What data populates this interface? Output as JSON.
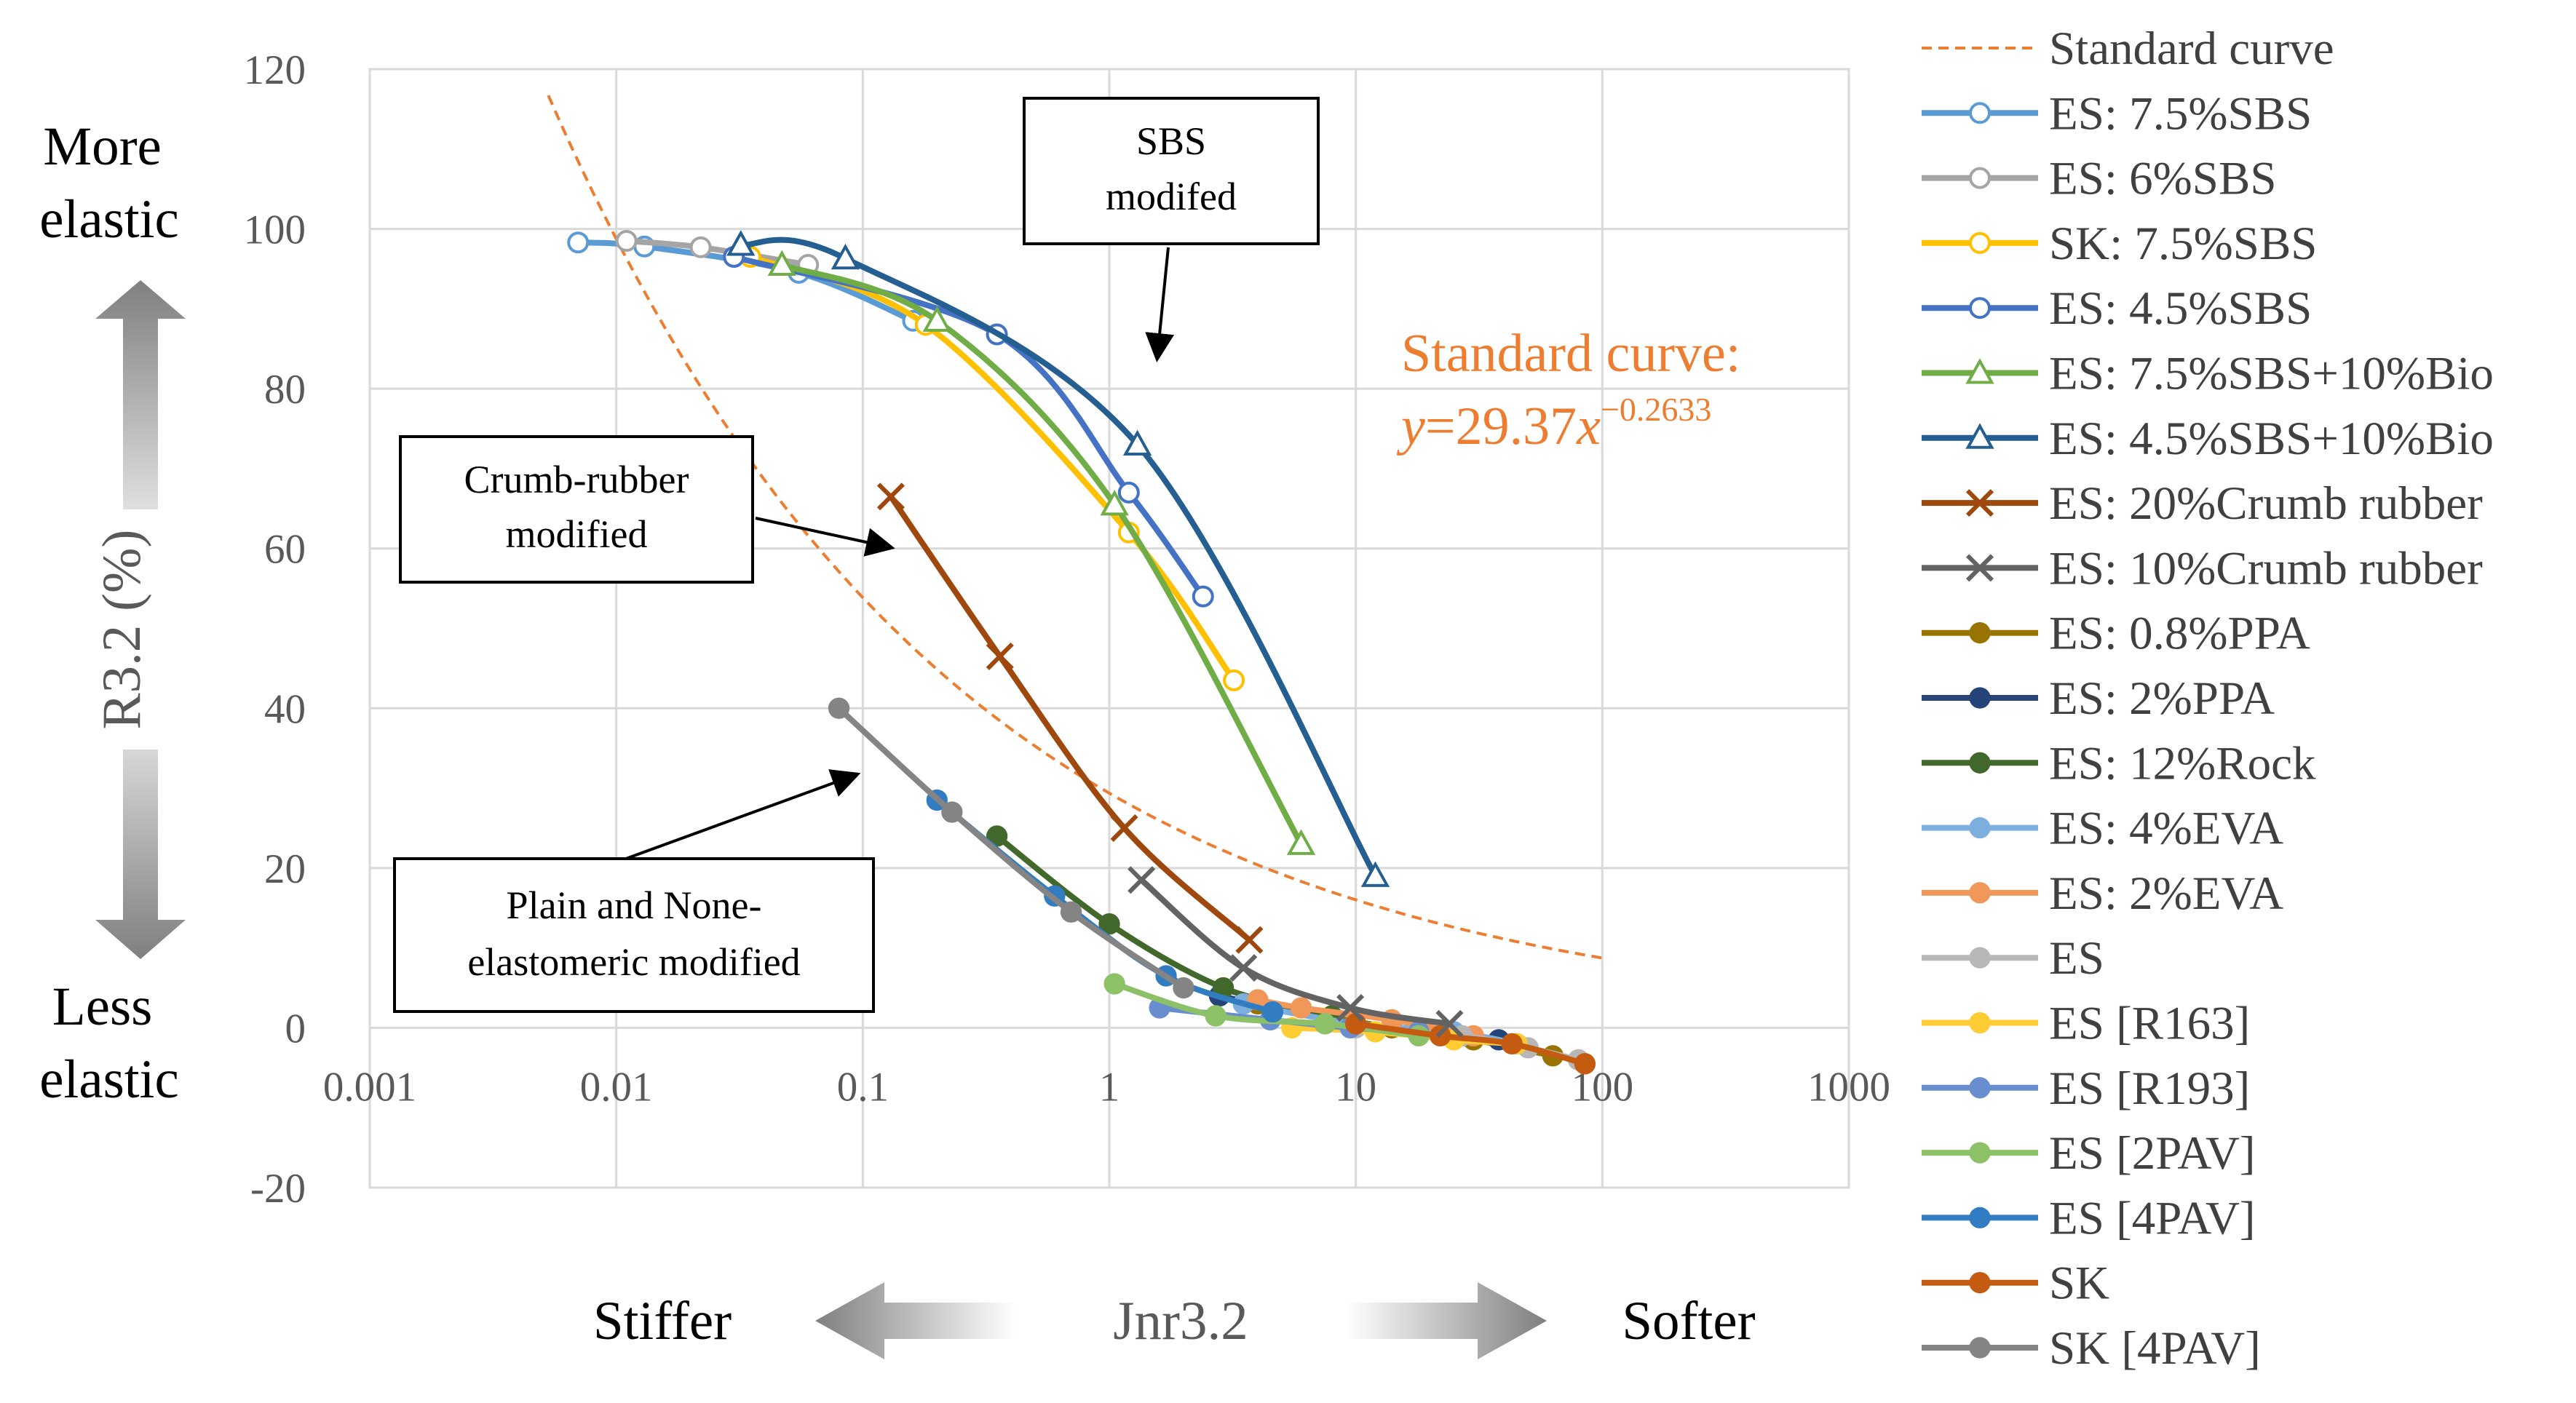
{
  "chart_data": {
    "type": "line",
    "xscale": "log",
    "xlim": [
      0.001,
      1000
    ],
    "ylim": [
      -20,
      120
    ],
    "xticks": [
      "0.001",
      "0.01",
      "0.1",
      "1",
      "10",
      "100",
      "1000"
    ],
    "yticks": [
      "-20",
      "0",
      "20",
      "40",
      "60",
      "80",
      "100",
      "120"
    ],
    "ylabel": "R3.2 (%)",
    "xlabel": "Jnr3.2",
    "x_left_label": "Stiffer",
    "x_right_label": "Softer",
    "y_top_label": [
      "More",
      "elastic"
    ],
    "y_bottom_label": [
      "Less",
      "elastic"
    ],
    "standard_curve": {
      "name": "Standard curve",
      "equation_title": "Standard curve:",
      "equation_y": "y",
      "equation_rhs": "=29.37",
      "equation_x": "x",
      "equation_exp": "−0.2633",
      "coefficient": 29.37,
      "exponent": -0.2633,
      "x_range": [
        0.0053,
        100
      ],
      "color": "#ed7d31"
    },
    "annotations": [
      {
        "lines": [
          "SBS",
          "modifed"
        ]
      },
      {
        "lines": [
          "Crumb-rubber",
          "modified"
        ]
      },
      {
        "lines": [
          "Plain and None-",
          "elastomeric modified"
        ]
      }
    ],
    "series": [
      {
        "name": "ES: 7.5%SBS",
        "color": "#5b9bd5",
        "marker": "o-open",
        "x": [
          0.007,
          0.013,
          0.055,
          0.16
        ],
        "y": [
          98.3,
          97.8,
          94.5,
          88.5
        ]
      },
      {
        "name": "ES: 6%SBS",
        "color": "#a5a5a5",
        "marker": "o-open",
        "x": [
          0.011,
          0.022,
          0.06
        ],
        "y": [
          98.5,
          97.7,
          95.5
        ]
      },
      {
        "name": "SK: 7.5%SBS",
        "color": "#ffc000",
        "marker": "o-open",
        "x": [
          0.035,
          0.18,
          1.2,
          3.2
        ],
        "y": [
          96.5,
          88.0,
          62.0,
          43.5
        ]
      },
      {
        "name": "ES: 4.5%SBS",
        "color": "#4472c4",
        "marker": "o-open",
        "x": [
          0.03,
          0.35,
          1.2,
          2.4
        ],
        "y": [
          96.5,
          86.8,
          67.0,
          54.0
        ]
      },
      {
        "name": "ES: 7.5%SBS+10%Bio",
        "color": "#70ad47",
        "marker": "tri-open",
        "x": [
          0.047,
          0.2,
          1.05,
          6.0
        ],
        "y": [
          95.5,
          88.5,
          65.5,
          23.0
        ]
      },
      {
        "name": "ES: 4.5%SBS+10%Bio",
        "color": "#255e91",
        "marker": "tri-open",
        "x": [
          0.032,
          0.085,
          1.3,
          12.0
        ],
        "y": [
          98.0,
          96.3,
          73.0,
          19.0
        ]
      },
      {
        "name": "ES: 20%Crumb rubber",
        "color": "#9e480e",
        "marker": "x",
        "x": [
          0.13,
          0.36,
          1.15,
          3.7
        ],
        "y": [
          66.5,
          46.5,
          25.0,
          11.0
        ]
      },
      {
        "name": "ES: 10%Crumb rubber",
        "color": "#636363",
        "marker": "x",
        "x": [
          1.35,
          3.5,
          9.5,
          24.0
        ],
        "y": [
          18.5,
          7.5,
          2.5,
          0.5
        ]
      },
      {
        "name": "ES: 0.8%PPA",
        "color": "#997300",
        "marker": "dot",
        "x": [
          4.0,
          14.0,
          30.0,
          63.0
        ],
        "y": [
          3.0,
          0.0,
          -1.5,
          -3.5
        ]
      },
      {
        "name": "ES: 2%PPA",
        "color": "#264478",
        "marker": "dot",
        "x": [
          2.8,
          8.0,
          18.0,
          38.0
        ],
        "y": [
          4.0,
          1.0,
          -0.5,
          -1.5
        ]
      },
      {
        "name": "ES: 12%Rock",
        "color": "#43682b",
        "marker": "dot",
        "x": [
          0.35,
          1.0,
          2.9,
          8.0
        ],
        "y": [
          24.0,
          13.0,
          5.0,
          1.5
        ]
      },
      {
        "name": "ES: 4%EVA",
        "color": "#7cafdd",
        "marker": "dot",
        "x": [
          3.5,
          10.0,
          25.0,
          45.0
        ],
        "y": [
          3.0,
          0.5,
          -0.5,
          -2.0
        ]
      },
      {
        "name": "ES: 2%EVA",
        "color": "#f1975a",
        "marker": "dot",
        "x": [
          4.0,
          6.0,
          14.0,
          30.0
        ],
        "y": [
          3.5,
          2.5,
          1.0,
          -1.0
        ]
      },
      {
        "name": "ES",
        "color": "#b7b7b7",
        "marker": "dot",
        "x": [
          10.0,
          27.0,
          50.0,
          80.0
        ],
        "y": [
          0.0,
          -1.0,
          -2.5,
          -4.0
        ]
      },
      {
        "name": "ES [R163]",
        "color": "#ffcd33",
        "marker": "dot",
        "x": [
          5.5,
          12.0,
          25.0,
          45.0
        ],
        "y": [
          0.0,
          -0.5,
          -1.5,
          -2.0
        ]
      },
      {
        "name": "ES [R193]",
        "color": "#698ed0",
        "marker": "dot",
        "x": [
          1.6,
          4.5,
          9.5,
          18.0
        ],
        "y": [
          2.5,
          1.0,
          0.0,
          -0.5
        ]
      },
      {
        "name": "ES [2PAV]",
        "color": "#8cc168",
        "marker": "dot",
        "x": [
          1.05,
          2.7,
          7.5,
          18.0
        ],
        "y": [
          5.5,
          1.5,
          0.5,
          -1.0
        ]
      },
      {
        "name": "ES [4PAV]",
        "color": "#327dc2",
        "marker": "dot",
        "x": [
          0.2,
          0.6,
          1.7,
          4.6
        ],
        "y": [
          28.5,
          16.5,
          6.5,
          2.0
        ]
      },
      {
        "name": "SK",
        "color": "#c55a11",
        "marker": "dot",
        "x": [
          10.0,
          22.0,
          43.0,
          85.0
        ],
        "y": [
          0.5,
          -1.0,
          -2.0,
          -4.5
        ]
      },
      {
        "name": "SK [4PAV]",
        "color": "#848484",
        "marker": "dot",
        "x": [
          0.08,
          0.23,
          0.7,
          2.0
        ],
        "y": [
          40.0,
          27.0,
          14.5,
          5.0
        ]
      }
    ]
  }
}
